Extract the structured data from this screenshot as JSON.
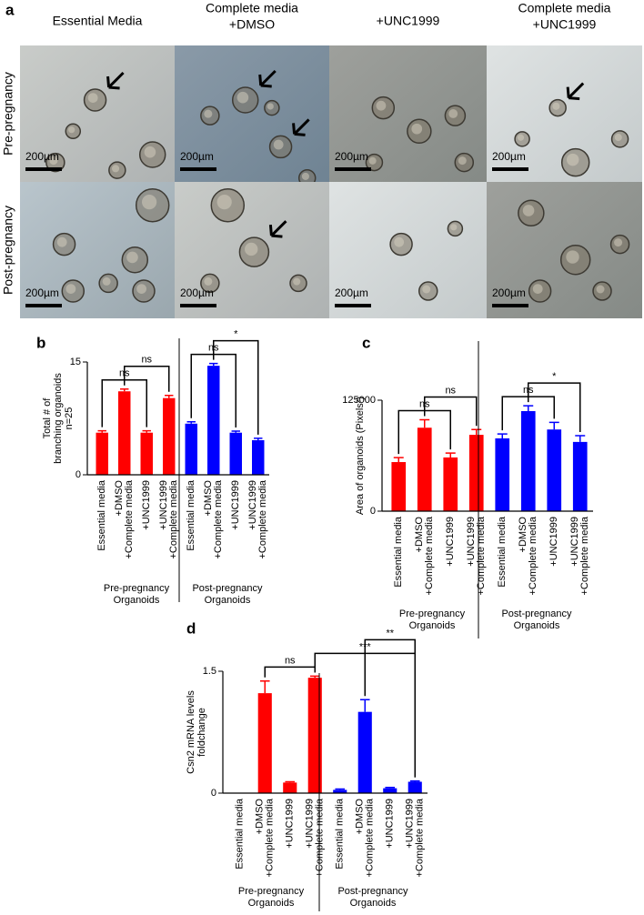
{
  "micrographs": {
    "panel": "a",
    "columns": [
      [
        "Essential Media"
      ],
      [
        "Complete media",
        "+DMSO"
      ],
      [
        "+UNC1999"
      ],
      [
        "Complete media",
        "+UNC1999"
      ]
    ],
    "rows": [
      "Pre-pregnancy",
      "Post-pregnancy"
    ],
    "scale_bar": "200µm"
  },
  "chart_data": [
    {
      "type": "bar",
      "panel": "b",
      "y_label": [
        "Total # of",
        "branching organoids",
        "n=25"
      ],
      "ylim": [
        0,
        15
      ],
      "yticks": [
        0,
        15
      ],
      "groups": [
        {
          "name": [
            "Pre-pregnancy",
            "Organoids"
          ],
          "color": "#ff0000",
          "categories": [
            [
              "Essential media"
            ],
            [
              "+DMSO",
              "+Complete media"
            ],
            [
              "+UNC1999"
            ],
            [
              "+UNC1999",
              "+Complete media"
            ]
          ],
          "values": [
            5.6,
            11.1,
            5.6,
            10.2
          ],
          "errors": [
            0.25,
            0.3,
            0.25,
            0.35
          ]
        },
        {
          "name": [
            "Post-pregnancy",
            "Organoids"
          ],
          "color": "#0000ff",
          "categories": [
            [
              "Essential media"
            ],
            [
              "+DMSO",
              "+Complete media"
            ],
            [
              "+UNC1999"
            ],
            [
              "+UNC1999",
              "+Complete media"
            ]
          ],
          "values": [
            6.8,
            14.5,
            5.6,
            4.6
          ],
          "errors": [
            0.25,
            0.3,
            0.2,
            0.25
          ]
        }
      ],
      "brackets": [
        {
          "from": 0,
          "to": 2,
          "label": "ns"
        },
        {
          "from": 1,
          "to": 3,
          "label": "ns"
        },
        {
          "from": 4,
          "to": 6,
          "label": "ns"
        },
        {
          "from": 5,
          "to": 7,
          "label": "*"
        }
      ]
    },
    {
      "type": "bar",
      "panel": "c",
      "y_label": [
        "Area of organoids (Pixels²)"
      ],
      "ylim": [
        0,
        125000
      ],
      "yticks": [
        0,
        125000
      ],
      "groups": [
        {
          "name": [
            "Pre-pregnancy",
            "Organoids"
          ],
          "color": "#ff0000",
          "categories": [
            [
              "Essential media"
            ],
            [
              "+DMSO",
              "+Complete media"
            ],
            [
              "+UNC1999"
            ],
            [
              "+UNC1999",
              "+Complete media"
            ]
          ],
          "values": [
            55300,
            94000,
            60500,
            86000
          ],
          "errors": [
            5000,
            9000,
            5000,
            6000
          ]
        },
        {
          "name": [
            "Post-pregnancy",
            "Organoids"
          ],
          "color": "#0000ff",
          "categories": [
            [
              "Essential media"
            ],
            [
              "+DMSO",
              "+Complete media"
            ],
            [
              "+UNC1999"
            ],
            [
              "+UNC1999",
              "+Complete media"
            ]
          ],
          "values": [
            82000,
            112700,
            92000,
            78000
          ],
          "errors": [
            5000,
            6000,
            8000,
            7000
          ]
        }
      ],
      "brackets": [
        {
          "from": 0,
          "to": 2,
          "label": "ns"
        },
        {
          "from": 1,
          "to": 3,
          "label": "ns"
        },
        {
          "from": 4,
          "to": 6,
          "label": "ns"
        },
        {
          "from": 5,
          "to": 7,
          "label": "*"
        }
      ]
    },
    {
      "type": "bar",
      "panel": "d",
      "y_label": [
        "Csn2 mRNA levels",
        "foldchange"
      ],
      "ylim": [
        0,
        1.5
      ],
      "yticks": [
        0,
        1.5
      ],
      "groups": [
        {
          "name": [
            "Pre-pregnancy",
            "Organoids"
          ],
          "color": "#ff0000",
          "categories": [
            [
              "Essential media"
            ],
            [
              "+DMSO",
              "+Complete media"
            ],
            [
              "+UNC1999"
            ],
            [
              "+UNC1999",
              "+Complete media"
            ]
          ],
          "values": [
            0,
            1.23,
            0.13,
            1.42
          ],
          "errors": [
            0,
            0.15,
            0.01,
            0.02
          ]
        },
        {
          "name": [
            "Post-pregnancy",
            "Organoids"
          ],
          "color": "#0000ff",
          "categories": [
            [
              "Essential media"
            ],
            [
              "+DMSO",
              "+Complete media"
            ],
            [
              "+UNC1999"
            ],
            [
              "+UNC1999",
              "+Complete media"
            ]
          ],
          "values": [
            0.04,
            1.0,
            0.06,
            0.14
          ],
          "errors": [
            0.01,
            0.15,
            0.01,
            0.01
          ]
        }
      ],
      "brackets": [
        {
          "from": 1,
          "to": 3,
          "label": "ns"
        },
        {
          "from": 3,
          "to": 7,
          "label": "***"
        },
        {
          "from": 5,
          "to": 7,
          "label": "**"
        }
      ]
    }
  ]
}
